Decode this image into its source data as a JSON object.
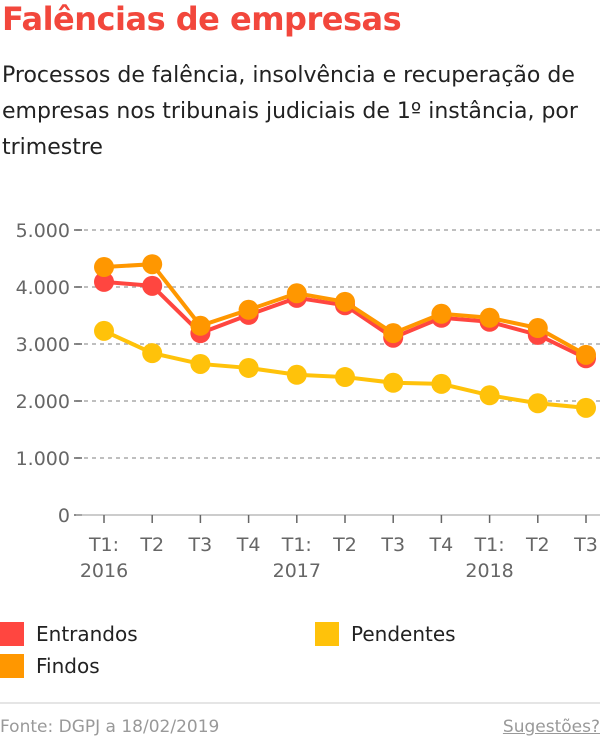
{
  "title": "Falências de empresas",
  "subtitle": "Processos de falência, insolvência e recuperação de empresas nos tribunais judiciais de 1º instância, por trimestre",
  "footer": {
    "source": "Fonte: DGPJ a 18/02/2019",
    "suggestions": "Sugestões?"
  },
  "chart_data": {
    "type": "line",
    "categories": [
      "T1: 2016",
      "T2",
      "T3",
      "T4",
      "T1: 2017",
      "T2",
      "T3",
      "T4",
      "T1: 2018",
      "T2",
      "T3"
    ],
    "ylim": [
      0,
      5000
    ],
    "yticks": [
      "0",
      "1.000",
      "2.000",
      "3.000",
      "4.000",
      "5.000"
    ],
    "grid": true,
    "legend_position": "bottom",
    "series": [
      {
        "name": "Entrandos",
        "color": "#ff4640",
        "values": [
          4090,
          4020,
          3190,
          3510,
          3810,
          3680,
          3110,
          3460,
          3390,
          3160,
          2750
        ]
      },
      {
        "name": "Findos",
        "color": "#ff9700",
        "values": [
          4350,
          4400,
          3320,
          3600,
          3890,
          3740,
          3190,
          3530,
          3460,
          3280,
          2810
        ]
      },
      {
        "name": "Pendentes",
        "color": "#ffc20a",
        "values": [
          3230,
          2840,
          2650,
          2580,
          2460,
          2420,
          2320,
          2300,
          2100,
          1960,
          1880
        ]
      }
    ]
  }
}
